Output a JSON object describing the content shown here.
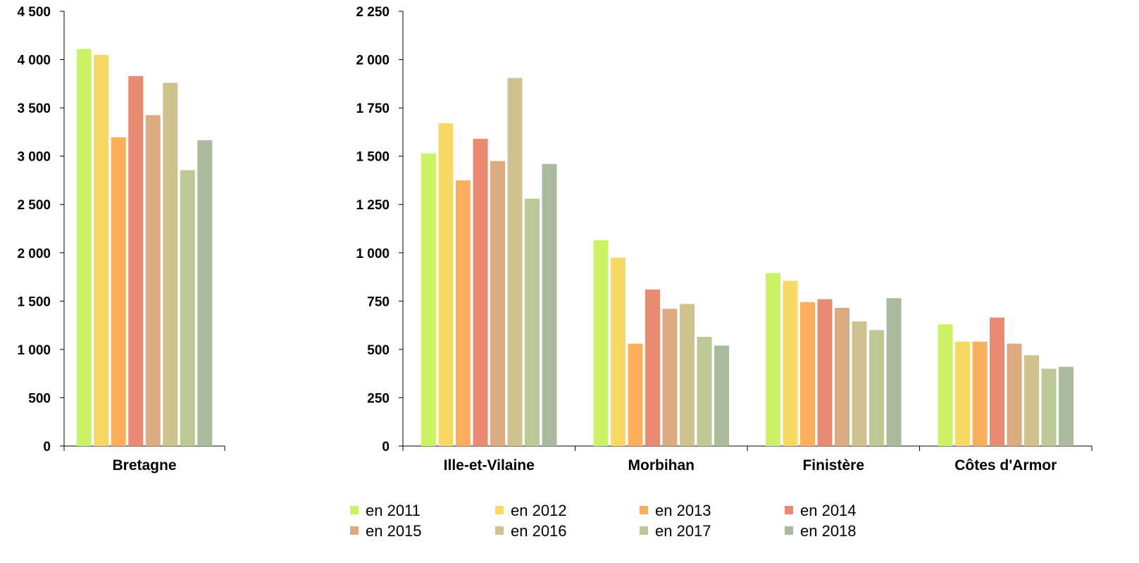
{
  "chart_data": [
    {
      "type": "bar",
      "categories": [
        "Bretagne"
      ],
      "ylim": [
        0,
        4500
      ],
      "yticks": [
        0,
        500,
        1000,
        1500,
        2000,
        2500,
        3000,
        3500,
        4000,
        4500
      ],
      "ytick_labels": [
        "0",
        "500",
        "1 000",
        "1 500",
        "2 000",
        "2 500",
        "3 000",
        "3 500",
        "4 000",
        "4 500"
      ],
      "grid": false,
      "series": [
        {
          "name": "en 2011",
          "values": [
            4110
          ]
        },
        {
          "name": "en 2012",
          "values": [
            4050
          ]
        },
        {
          "name": "en 2013",
          "values": [
            3195
          ]
        },
        {
          "name": "en 2014",
          "values": [
            3830
          ]
        },
        {
          "name": "en 2015",
          "values": [
            3425
          ]
        },
        {
          "name": "en 2016",
          "values": [
            3760
          ]
        },
        {
          "name": "en 2017",
          "values": [
            2855
          ]
        },
        {
          "name": "en 2018",
          "values": [
            3165
          ]
        }
      ]
    },
    {
      "type": "bar",
      "categories": [
        "Ille-et-Vilaine",
        "Morbihan",
        "Finistère",
        "Côtes d'Armor"
      ],
      "ylim": [
        0,
        2250
      ],
      "yticks": [
        0,
        250,
        500,
        750,
        1000,
        1250,
        1500,
        1750,
        2000,
        2250
      ],
      "ytick_labels": [
        "0",
        "250",
        "500",
        "750",
        "1 000",
        "1 250",
        "1 500",
        "1 750",
        "2 000",
        "2 250"
      ],
      "grid": false,
      "series": [
        {
          "name": "en 2011",
          "values": [
            1515,
            1065,
            895,
            630
          ]
        },
        {
          "name": "en 2012",
          "values": [
            1670,
            975,
            855,
            540
          ]
        },
        {
          "name": "en 2013",
          "values": [
            1375,
            530,
            745,
            540
          ]
        },
        {
          "name": "en 2014",
          "values": [
            1590,
            810,
            760,
            665
          ]
        },
        {
          "name": "en 2015",
          "values": [
            1475,
            710,
            715,
            530
          ]
        },
        {
          "name": "en 2016",
          "values": [
            1905,
            735,
            645,
            470
          ]
        },
        {
          "name": "en 2017",
          "values": [
            1280,
            565,
            600,
            400
          ]
        },
        {
          "name": "en 2018",
          "values": [
            1460,
            520,
            765,
            410
          ]
        }
      ]
    }
  ],
  "colors": [
    "#ccf266",
    "#f8d966",
    "#fbaf5d",
    "#e88b72",
    "#dcaa80",
    "#cfc28e",
    "#bdc897",
    "#a9bb9c"
  ],
  "legend": {
    "position": "bottom",
    "entries": [
      "en 2011",
      "en 2012",
      "en 2013",
      "en 2014",
      "en 2015",
      "en 2016",
      "en 2017",
      "en 2018"
    ]
  }
}
